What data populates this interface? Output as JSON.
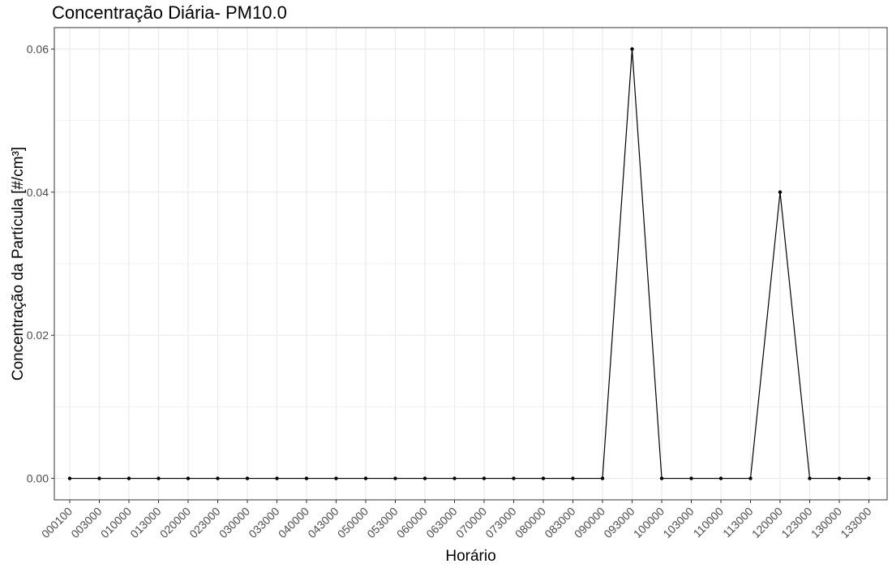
{
  "chart_data": {
    "type": "line",
    "title": "Concentração Diária- PM10.0",
    "xlabel": "Horário",
    "ylabel": "Concentração da Partícula [#/cm³]",
    "categories": [
      "000100",
      "003000",
      "010000",
      "013000",
      "020000",
      "023000",
      "030000",
      "033000",
      "040000",
      "043000",
      "050000",
      "053000",
      "060000",
      "063000",
      "070000",
      "073000",
      "080000",
      "083000",
      "090000",
      "093000",
      "100000",
      "103000",
      "110000",
      "113000",
      "120000",
      "123000",
      "130000",
      "133000"
    ],
    "series": [
      {
        "values": [
          0,
          0,
          0,
          0,
          0,
          0,
          0,
          0,
          0,
          0,
          0,
          0,
          0,
          0,
          0,
          0,
          0,
          0,
          0,
          0.06,
          0,
          0,
          0,
          0,
          0.04,
          0,
          0,
          0
        ]
      }
    ],
    "ylim": [
      -0.003,
      0.063
    ],
    "yticks": [
      0,
      0.02,
      0.04,
      0.06
    ],
    "ytick_labels": [
      "0.00",
      "0.02",
      "0.04",
      "0.06"
    ],
    "grid": true,
    "legend": "none",
    "line_color": "#000000",
    "grid_color": "#ebebeb",
    "grid_minor_color": "#f3f3f3"
  }
}
